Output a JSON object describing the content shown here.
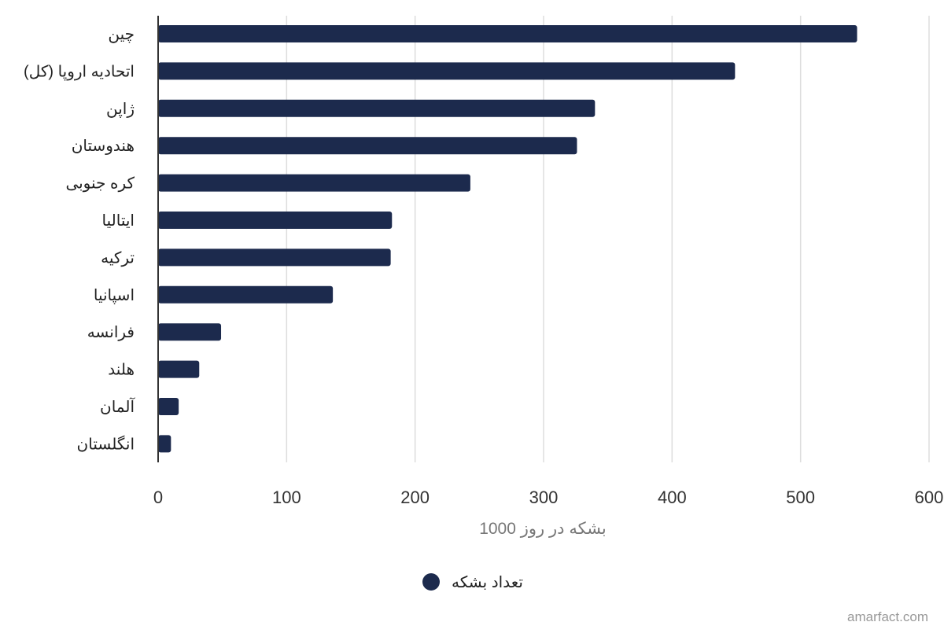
{
  "chart_data": {
    "type": "bar",
    "orientation": "horizontal",
    "categories": [
      "چین",
      "اتحادیه اروپا (کل)",
      "ژاپن",
      "هندوستان",
      "کره جنوبی",
      "ایتالیا",
      "ترکیه",
      "اسپانیا",
      "فرانسه",
      "هلند",
      "آلمان",
      "انگلستان"
    ],
    "series": [
      {
        "name": "تعداد بشکه",
        "values": [
          544,
          449,
          340,
          326,
          243,
          182,
          181,
          136,
          49,
          32,
          16,
          10
        ]
      }
    ],
    "xlabel": "بشکه در روز 1000",
    "xlim": [
      0,
      600
    ],
    "xticks": [
      0,
      100,
      200,
      300,
      400,
      500,
      600
    ],
    "grid": "vertical",
    "legend_position": "bottom-center",
    "colors": {
      "bar": "#1c2a4d",
      "grid": "#dddddd",
      "axis": "#333333"
    }
  },
  "watermark": "amarfact.com"
}
